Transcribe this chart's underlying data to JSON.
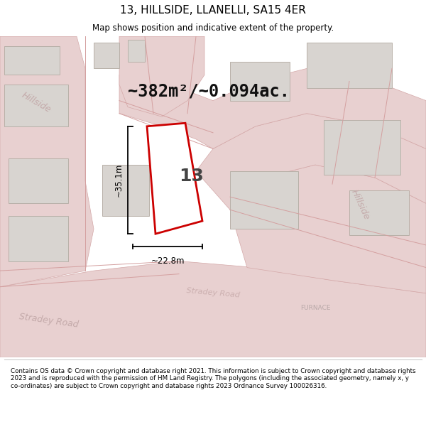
{
  "title": "13, HILLSIDE, LLANELLI, SA15 4ER",
  "subtitle": "Map shows position and indicative extent of the property.",
  "area_text": "~382m²/~0.094ac.",
  "property_number": "13",
  "dim_width": "~22.8m",
  "dim_height": "~35.1m",
  "footer": "Contains OS data © Crown copyright and database right 2021. This information is subject to Crown copyright and database rights 2023 and is reproduced with the permission of HM Land Registry. The polygons (including the associated geometry, namely x, y co-ordinates) are subject to Crown copyright and database rights 2023 Ordnance Survey 100026316.",
  "bg_color": "#f0eeec",
  "map_bg": "#eeebe8",
  "road_fill": "#e8d0d0",
  "road_line": "#d4a8a8",
  "building_fill": "#d8d4d0",
  "building_edge": "#b8b0a8",
  "property_fill": "#ffffff",
  "property_edge": "#cc0000",
  "dim_color": "#000000",
  "street_color": "#c8aaaa",
  "title_color": "#000000",
  "footer_color": "#000000",
  "title_fontsize": 11,
  "subtitle_fontsize": 8.5,
  "area_fontsize": 17,
  "propnum_fontsize": 18,
  "street_fontsize": 9,
  "dim_fontsize": 8.5,
  "footer_fontsize": 6.3
}
